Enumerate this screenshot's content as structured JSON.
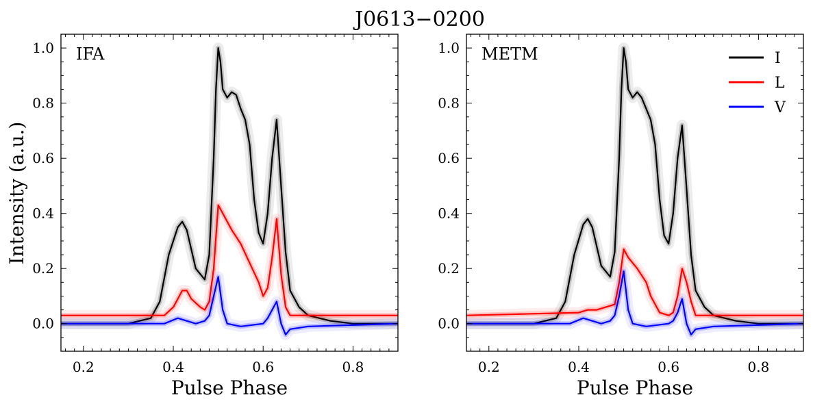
{
  "chart_data": {
    "suptitle": "J0613−0200",
    "type": "line",
    "xlabel": "Pulse Phase",
    "ylabel": "Intensity (a.u.)",
    "xlim": [
      0.15,
      0.9
    ],
    "ylim": [
      -0.1,
      1.05
    ],
    "xticks": [
      0.2,
      0.4,
      0.6,
      0.8
    ],
    "xtick_labels": [
      "0.2",
      "0.4",
      "0.6",
      "0.8"
    ],
    "yticks": [
      0.0,
      0.2,
      0.4,
      0.6,
      0.8,
      1.0
    ],
    "ytick_labels": [
      "0.0",
      "0.2",
      "0.4",
      "0.6",
      "0.8",
      "1.0"
    ],
    "legend": {
      "location": "upper right",
      "entries": [
        {
          "label": "I",
          "color": "#000000"
        },
        {
          "label": "L",
          "color": "#ff0000"
        },
        {
          "label": "V",
          "color": "#0000ff"
        }
      ]
    },
    "panels": [
      {
        "name": "IFA",
        "series": [
          {
            "name": "I",
            "color": "#000000",
            "x": [
              0.15,
              0.3,
              0.35,
              0.37,
              0.39,
              0.41,
              0.42,
              0.43,
              0.45,
              0.47,
              0.48,
              0.49,
              0.495,
              0.5,
              0.505,
              0.51,
              0.52,
              0.53,
              0.54,
              0.55,
              0.56,
              0.57,
              0.58,
              0.59,
              0.6,
              0.61,
              0.62,
              0.63,
              0.64,
              0.65,
              0.66,
              0.68,
              0.7,
              0.75,
              0.8,
              0.9
            ],
            "y": [
              0.0,
              0.0,
              0.02,
              0.08,
              0.25,
              0.35,
              0.37,
              0.34,
              0.2,
              0.16,
              0.25,
              0.6,
              0.85,
              1.0,
              0.95,
              0.85,
              0.82,
              0.84,
              0.83,
              0.78,
              0.74,
              0.65,
              0.45,
              0.33,
              0.29,
              0.4,
              0.6,
              0.74,
              0.5,
              0.26,
              0.12,
              0.06,
              0.03,
              0.01,
              0.0,
              0.0
            ]
          },
          {
            "name": "L",
            "color": "#ff0000",
            "x": [
              0.15,
              0.38,
              0.4,
              0.42,
              0.43,
              0.44,
              0.46,
              0.47,
              0.48,
              0.49,
              0.5,
              0.51,
              0.53,
              0.55,
              0.57,
              0.59,
              0.6,
              0.61,
              0.62,
              0.63,
              0.64,
              0.65,
              0.66,
              0.7,
              0.9
            ],
            "y": [
              0.03,
              0.03,
              0.06,
              0.12,
              0.12,
              0.09,
              0.06,
              0.05,
              0.08,
              0.2,
              0.43,
              0.4,
              0.34,
              0.29,
              0.22,
              0.15,
              0.1,
              0.13,
              0.24,
              0.38,
              0.18,
              0.06,
              0.03,
              0.03,
              0.03
            ]
          },
          {
            "name": "V",
            "color": "#0000ff",
            "x": [
              0.15,
              0.38,
              0.41,
              0.43,
              0.45,
              0.47,
              0.48,
              0.49,
              0.5,
              0.51,
              0.52,
              0.55,
              0.6,
              0.61,
              0.62,
              0.63,
              0.64,
              0.65,
              0.66,
              0.7,
              0.9
            ],
            "y": [
              0.0,
              0.0,
              0.02,
              0.01,
              0.0,
              0.01,
              0.03,
              0.1,
              0.17,
              0.05,
              0.0,
              -0.01,
              0.0,
              0.02,
              0.05,
              0.08,
              0.0,
              -0.04,
              -0.02,
              -0.01,
              0.0
            ]
          }
        ]
      },
      {
        "name": "METM",
        "series": [
          {
            "name": "I",
            "color": "#000000",
            "x": [
              0.15,
              0.3,
              0.35,
              0.37,
              0.39,
              0.41,
              0.42,
              0.43,
              0.45,
              0.47,
              0.48,
              0.49,
              0.495,
              0.5,
              0.505,
              0.51,
              0.52,
              0.53,
              0.54,
              0.55,
              0.56,
              0.57,
              0.58,
              0.59,
              0.6,
              0.61,
              0.62,
              0.63,
              0.64,
              0.65,
              0.66,
              0.68,
              0.7,
              0.75,
              0.8,
              0.9
            ],
            "y": [
              0.0,
              0.0,
              0.02,
              0.08,
              0.25,
              0.36,
              0.38,
              0.35,
              0.21,
              0.17,
              0.26,
              0.6,
              0.85,
              1.0,
              0.95,
              0.85,
              0.82,
              0.84,
              0.82,
              0.78,
              0.74,
              0.65,
              0.45,
              0.32,
              0.29,
              0.4,
              0.6,
              0.72,
              0.49,
              0.25,
              0.12,
              0.06,
              0.03,
              0.01,
              0.0,
              0.0
            ]
          },
          {
            "name": "L",
            "color": "#ff0000",
            "x": [
              0.15,
              0.4,
              0.42,
              0.44,
              0.46,
              0.48,
              0.49,
              0.5,
              0.51,
              0.53,
              0.55,
              0.56,
              0.58,
              0.6,
              0.61,
              0.62,
              0.63,
              0.64,
              0.65,
              0.66,
              0.7,
              0.9
            ],
            "y": [
              0.03,
              0.04,
              0.05,
              0.05,
              0.06,
              0.07,
              0.15,
              0.27,
              0.24,
              0.2,
              0.15,
              0.1,
              0.04,
              0.03,
              0.04,
              0.1,
              0.2,
              0.15,
              0.08,
              0.03,
              0.03,
              0.03
            ]
          },
          {
            "name": "V",
            "color": "#0000ff",
            "x": [
              0.15,
              0.38,
              0.41,
              0.43,
              0.45,
              0.47,
              0.48,
              0.49,
              0.5,
              0.51,
              0.52,
              0.55,
              0.6,
              0.61,
              0.62,
              0.63,
              0.64,
              0.65,
              0.66,
              0.7,
              0.9
            ],
            "y": [
              0.0,
              0.0,
              0.02,
              0.01,
              0.0,
              0.01,
              0.03,
              0.1,
              0.19,
              0.05,
              0.0,
              -0.01,
              0.0,
              0.01,
              0.04,
              0.09,
              0.0,
              -0.04,
              -0.02,
              -0.01,
              0.0
            ]
          }
        ]
      }
    ]
  }
}
